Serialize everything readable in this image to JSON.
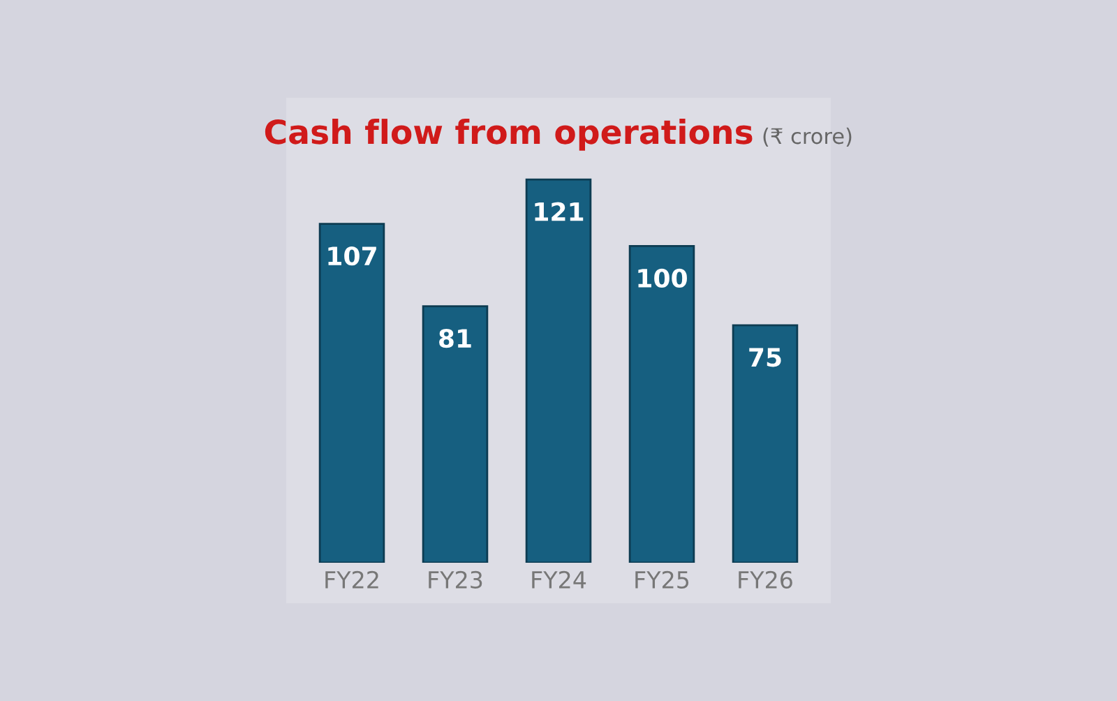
{
  "chart_data": {
    "type": "bar",
    "title": "Cash flow from operations",
    "subtitle": "(₹ crore)",
    "categories": [
      "FY22",
      "FY23",
      "FY24",
      "FY25",
      "FY26"
    ],
    "values": [
      107,
      81,
      121,
      100,
      75
    ],
    "color": "#165f80",
    "data_labels": true,
    "grid": false,
    "legend": false
  }
}
